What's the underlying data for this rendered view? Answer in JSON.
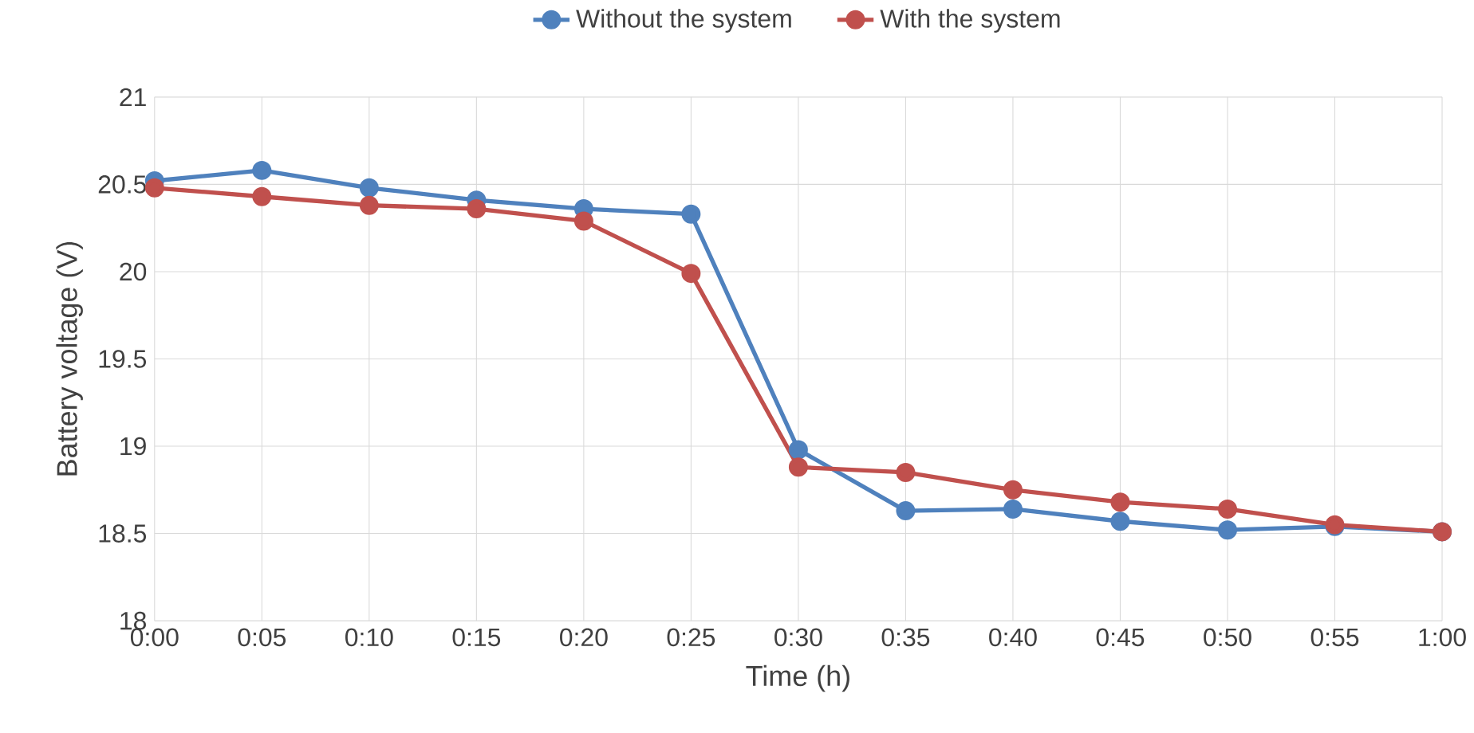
{
  "chart_data": {
    "type": "line",
    "xlabel": "Time (h)",
    "ylabel": "Battery voltage (V)",
    "categories": [
      "0:00",
      "0:05",
      "0:10",
      "0:15",
      "0:20",
      "0:25",
      "0:30",
      "0:35",
      "0:40",
      "0:45",
      "0:50",
      "0:55",
      "1:00"
    ],
    "series": [
      {
        "name": "Without the system",
        "color": "#4f81bd",
        "values": [
          20.52,
          20.58,
          20.48,
          20.41,
          20.36,
          20.33,
          18.98,
          18.63,
          18.64,
          18.57,
          18.52,
          18.54,
          18.51
        ]
      },
      {
        "name": "With the system",
        "color": "#c0504d",
        "values": [
          20.48,
          20.43,
          20.38,
          20.36,
          20.29,
          19.99,
          18.88,
          18.85,
          18.75,
          18.68,
          18.64,
          18.55,
          18.51
        ]
      }
    ],
    "ylim": [
      18,
      21
    ],
    "yticks": [
      18,
      18.5,
      19,
      19.5,
      20,
      20.5,
      21
    ],
    "grid": true,
    "legend": "top",
    "marker": "circle",
    "line_style": "solid"
  }
}
